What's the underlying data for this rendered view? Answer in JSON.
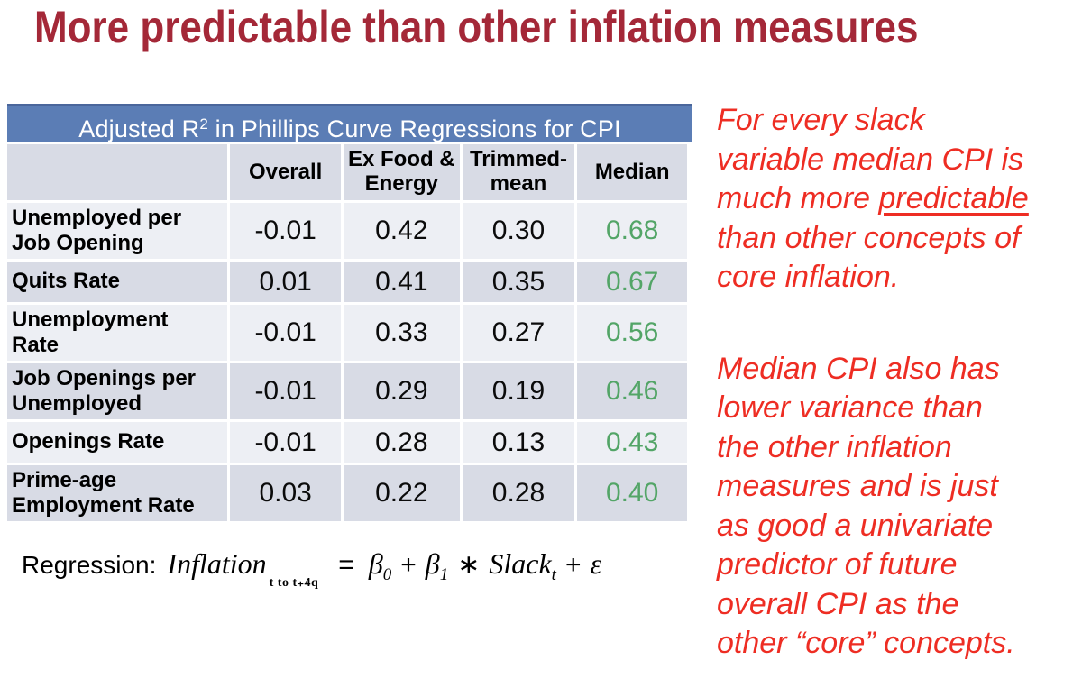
{
  "slide": {
    "title": "More predictable than other inflation measures"
  },
  "table": {
    "title_pre": "Adjusted R",
    "title_sup": "2",
    "title_post": " in Phillips Curve Regressions for CPI",
    "columns": [
      "Overall",
      "Ex Food & Energy",
      "Trimmed-mean",
      "Median"
    ],
    "rows": [
      {
        "label_lines": [
          "Unemployed per",
          "Job Opening"
        ],
        "values": [
          "-0.01",
          "0.42",
          "0.30",
          "0.68"
        ]
      },
      {
        "label_lines": [
          "Quits Rate"
        ],
        "values": [
          "0.01",
          "0.41",
          "0.35",
          "0.67"
        ]
      },
      {
        "label_lines": [
          "Unemployment",
          "Rate"
        ],
        "values": [
          "-0.01",
          "0.33",
          "0.27",
          "0.56"
        ]
      },
      {
        "label_lines": [
          "Job Openings per",
          "Unemployed"
        ],
        "values": [
          "-0.01",
          "0.29",
          "0.19",
          "0.46"
        ]
      },
      {
        "label_lines": [
          "Openings Rate"
        ],
        "values": [
          "-0.01",
          "0.28",
          "0.13",
          "0.43"
        ]
      },
      {
        "label_lines": [
          "Prime-age",
          "Employment Rate"
        ],
        "values": [
          "0.03",
          "0.22",
          "0.28",
          "0.40"
        ]
      }
    ]
  },
  "formula": {
    "label": "Regression:",
    "dependent": "Inflation",
    "dependent_sub": "t to t₊4q",
    "equals": "=",
    "beta": "β",
    "beta0_sub": "0",
    "plus_1": "+",
    "beta1_sub": "1",
    "star": "∗",
    "slack": "Slack",
    "slack_sub": "t",
    "plus_2": "+",
    "epsilon": "ε"
  },
  "notes": {
    "p1_lines": [
      "For every slack",
      "variable median CPI is",
      {
        "pre": "much more ",
        "underlined": "predictable"
      },
      "than other concepts of",
      "core inflation."
    ],
    "p2_lines": [
      "Median CPI also has",
      "lower variance than",
      "the other inflation",
      "measures and is just",
      "as good a univariate",
      "predictor of future",
      "overall CPI as the",
      "other “core” concepts."
    ]
  },
  "colors": {
    "title_red": "#A42838",
    "note_red": "#EE2D23",
    "median_green": "#53A567",
    "banner_blue": "#5B7DB5",
    "row_light": "#EDEFF4",
    "row_dark": "#D8DBE5"
  }
}
